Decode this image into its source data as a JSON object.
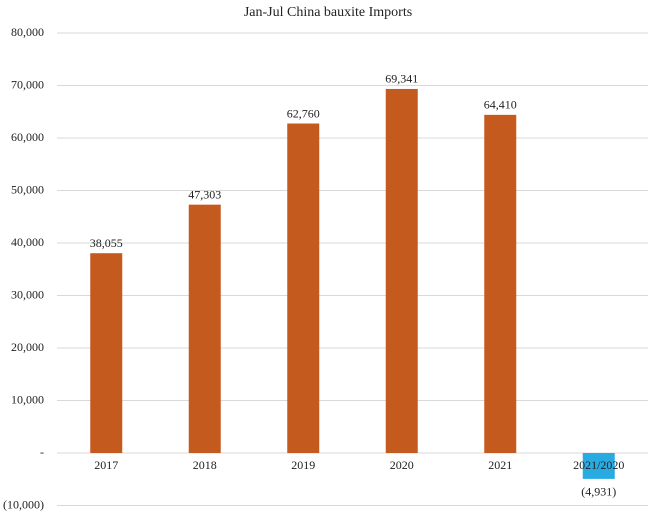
{
  "chart_data": {
    "type": "bar",
    "title": "Jan-Jul China bauxite Imports",
    "categories": [
      "2017",
      "2018",
      "2019",
      "2020",
      "2021",
      "2021/2020"
    ],
    "values": [
      38055,
      47303,
      62760,
      69341,
      64410,
      -4931
    ],
    "value_labels": [
      "38,055",
      "47,303",
      "62,760",
      "69,341",
      "64,410",
      "(4,931)"
    ],
    "colors": [
      "#c55a1e",
      "#c55a1e",
      "#c55a1e",
      "#c55a1e",
      "#c55a1e",
      "#29abe2"
    ],
    "ylim": [
      -10000,
      80000
    ],
    "yticks": [
      {
        "value": -10000,
        "label": "(10,000)"
      },
      {
        "value": 0,
        "label": "-"
      },
      {
        "value": 10000,
        "label": "10,000"
      },
      {
        "value": 20000,
        "label": "20,000"
      },
      {
        "value": 30000,
        "label": "30,000"
      },
      {
        "value": 40000,
        "label": "40,000"
      },
      {
        "value": 50000,
        "label": "50,000"
      },
      {
        "value": 60000,
        "label": "60,000"
      },
      {
        "value": 70000,
        "label": "70,000"
      },
      {
        "value": 80000,
        "label": "80,000"
      }
    ],
    "grid": true
  }
}
